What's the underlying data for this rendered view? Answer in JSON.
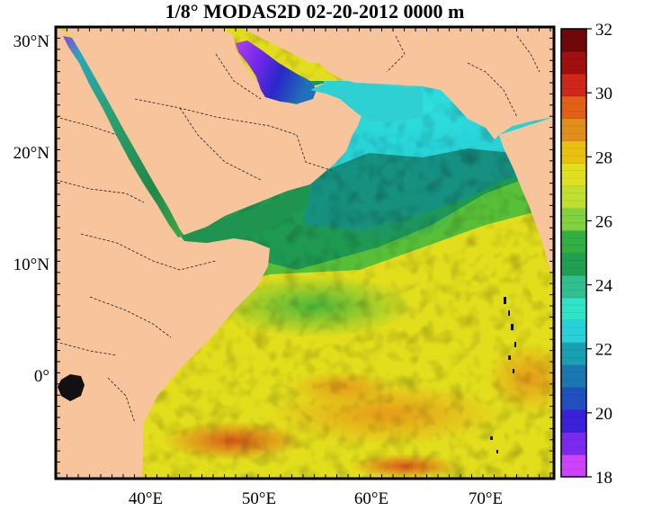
{
  "title": "1/8° MODAS2D 02-20-2012 0000 m",
  "map": {
    "lon_labels": [
      "40°E",
      "50°E",
      "60°E",
      "70°E"
    ],
    "lat_labels": [
      "30°N",
      "20°N",
      "10°N",
      "0°"
    ],
    "land_color": "#f8c49c"
  },
  "colorbar": {
    "min": 18,
    "max": 32,
    "tick_labels": [
      "32",
      "30",
      "28",
      "26",
      "24",
      "22",
      "20",
      "18"
    ],
    "colors": [
      "#cc44ff",
      "#7a2aee",
      "#3a20d8",
      "#2050c0",
      "#1a78b0",
      "#18a0b0",
      "#28d0d8",
      "#30e4c8",
      "#30c090",
      "#20a050",
      "#30b040",
      "#80d040",
      "#c0e030",
      "#e0e020",
      "#e8c010",
      "#e09018",
      "#e06018",
      "#d02818",
      "#a01010",
      "#700808"
    ]
  }
}
